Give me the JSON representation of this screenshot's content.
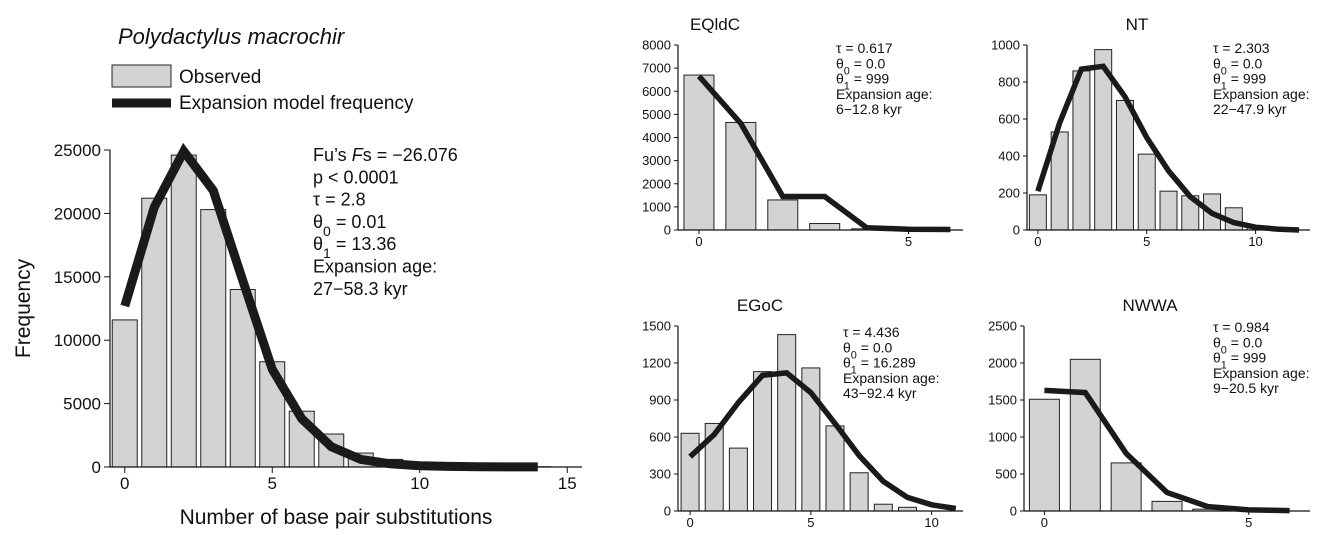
{
  "colors": {
    "bar_fill": "#d2d3d5",
    "bar_stroke": "#222222",
    "line": "#1a1a1a"
  },
  "chart_data": [
    {
      "id": "main",
      "type": "bar+line",
      "title": "Polydactylus macrochir",
      "xlabel": "Number of base pair substitutions",
      "ylabel": "Frequency",
      "xlim": [
        -0.5,
        15.5
      ],
      "ylim": [
        0,
        25000
      ],
      "xticks": [
        0,
        5,
        10,
        15
      ],
      "yticks": [
        0,
        5000,
        10000,
        15000,
        20000,
        25000
      ],
      "ytick_labels": [
        "0",
        "5000",
        "10000",
        "15000",
        "20000",
        "25000"
      ],
      "legend": {
        "position": "top-left",
        "entries": [
          "Observed",
          "Expansion model frequency"
        ]
      },
      "observed": {
        "x": [
          0,
          1,
          2,
          3,
          4,
          5,
          6,
          7,
          8,
          9,
          10,
          11,
          12,
          13,
          14
        ],
        "y": [
          11600,
          21200,
          24600,
          20300,
          14000,
          8300,
          4400,
          2600,
          1100,
          600,
          200,
          100,
          50,
          30,
          20
        ]
      },
      "expected": {
        "x": [
          0,
          1,
          2,
          3,
          4,
          5,
          6,
          7,
          8,
          9,
          10,
          11,
          12,
          13,
          14
        ],
        "y": [
          12700,
          20500,
          24900,
          21800,
          14700,
          7700,
          3800,
          1600,
          600,
          250,
          100,
          50,
          20,
          10,
          5
        ]
      },
      "stats": [
        {
          "parts": [
            {
              "t": "Fu’s "
            },
            {
              "t": "F",
              "style": "italic"
            },
            {
              "t": "s = −26.076"
            }
          ]
        },
        {
          "parts": [
            {
              "t": "p < 0.0001"
            }
          ]
        },
        {
          "parts": [
            {
              "t": "τ = 2.8"
            }
          ]
        },
        {
          "parts": [
            {
              "t": "θ"
            },
            {
              "t": "0",
              "style": "sub"
            },
            {
              "t": " = 0.01"
            }
          ]
        },
        {
          "parts": [
            {
              "t": "θ"
            },
            {
              "t": "1",
              "style": "sub"
            },
            {
              "t": " = 13.36"
            }
          ]
        },
        {
          "parts": [
            {
              "t": "Expansion age:"
            }
          ]
        },
        {
          "parts": [
            {
              "t": "27−58.3 kyr"
            }
          ]
        }
      ]
    },
    {
      "id": "eqldc",
      "type": "bar+line",
      "title": "EQldC",
      "xlim": [
        -0.5,
        6.3
      ],
      "ylim": [
        0,
        8000
      ],
      "xticks": [
        0,
        5
      ],
      "yticks": [
        0,
        1000,
        2000,
        3000,
        4000,
        5000,
        6000,
        7000,
        8000
      ],
      "observed": {
        "x": [
          0,
          1,
          2,
          3,
          4
        ],
        "y": [
          6700,
          4650,
          1300,
          280,
          50
        ]
      },
      "expected": {
        "x": [
          0,
          1,
          2,
          3,
          4,
          5,
          6
        ],
        "y": [
          6650,
          4600,
          1450,
          1450,
          100,
          30,
          20
        ]
      },
      "stats": [
        {
          "parts": [
            {
              "t": "τ = 0.617"
            }
          ]
        },
        {
          "parts": [
            {
              "t": "θ"
            },
            {
              "t": "0",
              "style": "sub"
            },
            {
              "t": " = 0.0"
            }
          ]
        },
        {
          "parts": [
            {
              "t": "θ"
            },
            {
              "t": "1",
              "style": "sub"
            },
            {
              "t": " = 999"
            }
          ]
        },
        {
          "parts": [
            {
              "t": "Expansion age:"
            }
          ]
        },
        {
          "parts": [
            {
              "t": "6−12.8 kyr"
            }
          ]
        }
      ]
    },
    {
      "id": "nt",
      "type": "bar+line",
      "title": "NT",
      "xlim": [
        -0.5,
        12.5
      ],
      "ylim": [
        0,
        1000
      ],
      "xticks": [
        0,
        5,
        10
      ],
      "yticks": [
        0,
        200,
        400,
        600,
        800,
        1000
      ],
      "observed": {
        "x": [
          0,
          1,
          2,
          3,
          4,
          5,
          6,
          7,
          8,
          9,
          10,
          11
        ],
        "y": [
          190,
          530,
          860,
          975,
          700,
          410,
          210,
          185,
          195,
          120,
          20,
          10
        ]
      },
      "expected": {
        "x": [
          0,
          1,
          2,
          3,
          4,
          5,
          6,
          7,
          8,
          9,
          10,
          11,
          12
        ],
        "y": [
          210,
          580,
          870,
          885,
          720,
          500,
          320,
          180,
          90,
          40,
          15,
          5,
          0
        ]
      },
      "stats": [
        {
          "parts": [
            {
              "t": "τ = 2.303"
            }
          ]
        },
        {
          "parts": [
            {
              "t": "θ"
            },
            {
              "t": "0",
              "style": "sub"
            },
            {
              "t": " = 0.0"
            }
          ]
        },
        {
          "parts": [
            {
              "t": "θ"
            },
            {
              "t": "1",
              "style": "sub"
            },
            {
              "t": " = 999"
            }
          ]
        },
        {
          "parts": [
            {
              "t": "Expansion age:"
            }
          ]
        },
        {
          "parts": [
            {
              "t": "22−47.9 kyr"
            }
          ]
        }
      ]
    },
    {
      "id": "egoc",
      "type": "bar+line",
      "title": "EGoC",
      "xlim": [
        -0.5,
        11.3
      ],
      "ylim": [
        0,
        1500
      ],
      "xticks": [
        0,
        5,
        10
      ],
      "yticks": [
        0,
        300,
        600,
        900,
        1200,
        1500
      ],
      "observed": {
        "x": [
          0,
          1,
          2,
          3,
          4,
          5,
          6,
          7,
          8,
          9
        ],
        "y": [
          630,
          710,
          510,
          1130,
          1430,
          1160,
          690,
          310,
          55,
          30
        ]
      },
      "expected": {
        "x": [
          0,
          1,
          2,
          3,
          4,
          5,
          6,
          7,
          8,
          9,
          10,
          11
        ],
        "y": [
          440,
          620,
          880,
          1100,
          1120,
          960,
          710,
          450,
          240,
          110,
          50,
          20
        ]
      },
      "stats": [
        {
          "parts": [
            {
              "t": "τ = 4.436"
            }
          ]
        },
        {
          "parts": [
            {
              "t": "θ"
            },
            {
              "t": "0",
              "style": "sub"
            },
            {
              "t": " = 0.0"
            }
          ]
        },
        {
          "parts": [
            {
              "t": "θ"
            },
            {
              "t": "1",
              "style": "sub"
            },
            {
              "t": " = 16.289"
            }
          ]
        },
        {
          "parts": [
            {
              "t": "Expansion age:"
            }
          ]
        },
        {
          "parts": [
            {
              "t": "43−92.4 kyr"
            }
          ]
        }
      ]
    },
    {
      "id": "nwwa",
      "type": "bar+line",
      "title": "NWWA",
      "xlim": [
        -0.5,
        6.5
      ],
      "ylim": [
        0,
        2500
      ],
      "xticks": [
        0,
        5
      ],
      "yticks": [
        0,
        500,
        1000,
        1500,
        2000,
        2500
      ],
      "observed": {
        "x": [
          0,
          1,
          2,
          3,
          4
        ],
        "y": [
          1510,
          2050,
          650,
          130,
          25
        ]
      },
      "expected": {
        "x": [
          0,
          1,
          2,
          3,
          4,
          5,
          6
        ],
        "y": [
          1630,
          1600,
          780,
          250,
          60,
          15,
          5
        ]
      },
      "stats": [
        {
          "parts": [
            {
              "t": "τ = 0.984"
            }
          ]
        },
        {
          "parts": [
            {
              "t": "θ"
            },
            {
              "t": "0",
              "style": "sub"
            },
            {
              "t": " = 0.0"
            }
          ]
        },
        {
          "parts": [
            {
              "t": "θ"
            },
            {
              "t": "1",
              "style": "sub"
            },
            {
              "t": " = 999"
            }
          ]
        },
        {
          "parts": [
            {
              "t": "Expansion age:"
            }
          ]
        },
        {
          "parts": [
            {
              "t": "9−20.5 kyr"
            }
          ]
        }
      ]
    }
  ]
}
